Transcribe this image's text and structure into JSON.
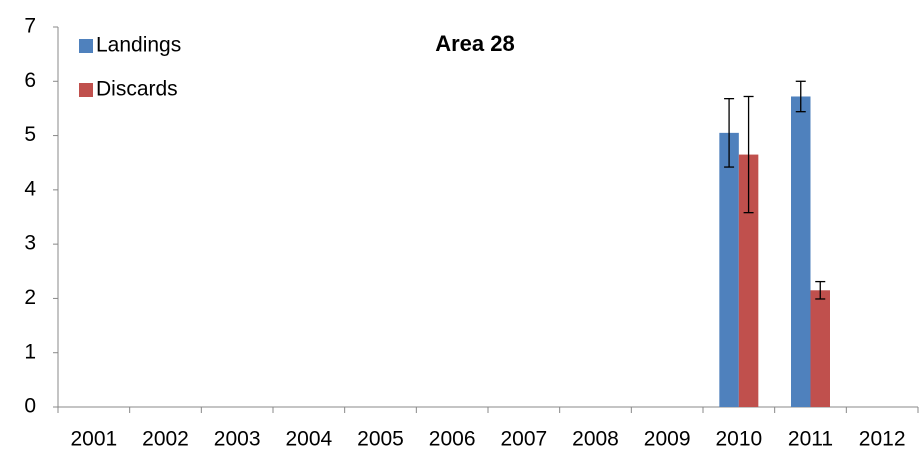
{
  "chart_data": {
    "type": "bar",
    "title": "Area 28",
    "categories": [
      "2001",
      "2002",
      "2003",
      "2004",
      "2005",
      "2006",
      "2007",
      "2008",
      "2009",
      "2010",
      "2011",
      "2012"
    ],
    "series": [
      {
        "name": "Landings",
        "color": "#4f81bd",
        "values": [
          null,
          null,
          null,
          null,
          null,
          null,
          null,
          null,
          null,
          5.05,
          5.72,
          null
        ],
        "errors": [
          null,
          null,
          null,
          null,
          null,
          null,
          null,
          null,
          null,
          0.63,
          0.28,
          null
        ]
      },
      {
        "name": "Discards",
        "color": "#c0504d",
        "values": [
          null,
          null,
          null,
          null,
          null,
          null,
          null,
          null,
          null,
          4.65,
          2.15,
          null
        ],
        "errors": [
          null,
          null,
          null,
          null,
          null,
          null,
          null,
          null,
          null,
          1.07,
          0.16,
          null
        ]
      }
    ],
    "ylim": [
      0,
      7
    ],
    "yticks": [
      0,
      1,
      2,
      3,
      4,
      5,
      6,
      7
    ],
    "grid": false,
    "legend": "top-left"
  }
}
